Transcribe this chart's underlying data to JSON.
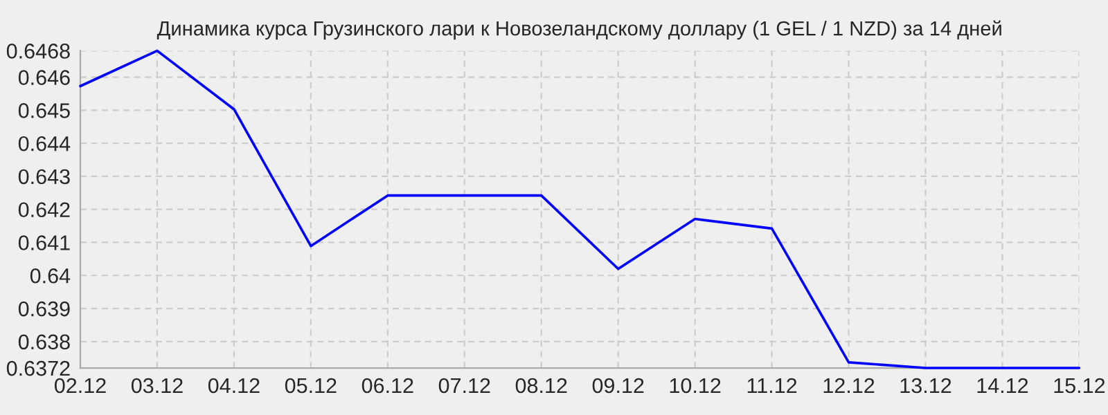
{
  "chart_data": {
    "type": "line",
    "title": "Динамика курса Грузинского лари к Новозеландскому доллару (1 GEL / 1 NZD) за 14 дней",
    "categories": [
      "02.12",
      "03.12",
      "04.12",
      "05.12",
      "06.12",
      "07.12",
      "08.12",
      "09.12",
      "10.12",
      "11.12",
      "12.12",
      "13.12",
      "14.12",
      "15.12"
    ],
    "series": [
      {
        "color": "#0000ff",
        "values": [
          0.64573,
          0.6468,
          0.64503,
          0.64089,
          0.64242,
          0.64242,
          0.64242,
          0.6402,
          0.64171,
          0.64142,
          0.63737,
          0.6372,
          0.6372,
          0.6372
        ]
      }
    ],
    "ylim": [
      0.6372,
      0.6468
    ],
    "yticks": [
      0.6372,
      0.638,
      0.639,
      0.64,
      0.641,
      0.642,
      0.643,
      0.644,
      0.645,
      0.646,
      0.6468
    ],
    "grid": true,
    "legend": false,
    "marker": "none",
    "line_style": "solid"
  }
}
